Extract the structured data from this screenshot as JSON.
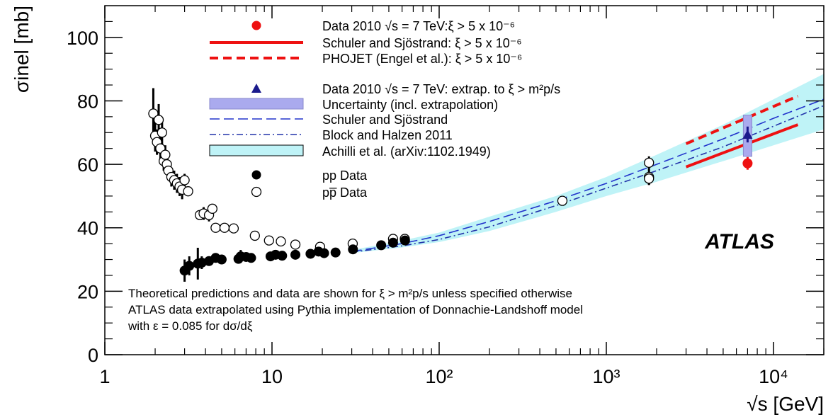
{
  "chart_data": {
    "type": "scatter",
    "x_scale": "log",
    "xlim": [
      1,
      20000
    ],
    "ylim": [
      0,
      110
    ],
    "xlabel": "√s [GeV]",
    "ylabel": "σinel [mb]",
    "x_ticks": [
      {
        "value": 1,
        "label": "1"
      },
      {
        "value": 10,
        "label": "10"
      },
      {
        "value": 100,
        "label": "10²"
      },
      {
        "value": 1000,
        "label": "10³"
      },
      {
        "value": 10000,
        "label": "10⁴"
      }
    ],
    "y_ticks": [
      {
        "value": 0,
        "label": "0"
      },
      {
        "value": 20,
        "label": "20"
      },
      {
        "value": 40,
        "label": "40"
      },
      {
        "value": 60,
        "label": "60"
      },
      {
        "value": 80,
        "label": "80"
      },
      {
        "value": 100,
        "label": "100"
      }
    ],
    "experiment_label": "ATLAS",
    "notes": [
      "Theoretical predictions and data are shown for ξ > m²p/s unless specified otherwise",
      "ATLAS data extrapolated using Pythia implementation of Donnachie-Landshoff model",
      "with ε = 0.085 for dσ/dξ"
    ],
    "legend": [
      {
        "key": "atlas_data",
        "label": "Data 2010 √s = 7 TeV:ξ > 5 x 10⁻⁶",
        "marker": "filled-circle",
        "color": "#ee1111"
      },
      {
        "key": "schuler_red",
        "label": "Schuler and Sjöstrand: ξ > 5 x 10⁻⁶",
        "line": "solid",
        "color": "#ee1111"
      },
      {
        "key": "phojet",
        "label": "PHOJET (Engel et al.): ξ > 5 x 10⁻⁶",
        "line": "dashed",
        "color": "#ee1111"
      },
      {
        "key": "atlas_extrap",
        "label": "Data 2010 √s = 7 TeV: extrap. to ξ > m²p/s",
        "marker": "triangle",
        "color": "#1a1a8c"
      },
      {
        "key": "uncertainty",
        "label": "Uncertainty (incl. extrapolation)",
        "box": "fill",
        "color": "#aaaaee"
      },
      {
        "key": "schuler_blue",
        "label": "Schuler and Sjöstrand",
        "line": "long-dash",
        "color": "#2233cc"
      },
      {
        "key": "block_halzen",
        "label": "Block and Halzen 2011",
        "line": "dash-dot",
        "color": "#2233aa"
      },
      {
        "key": "achilli",
        "label": "Achilli et al. (arXiv:1102.1949)",
        "box": "fill",
        "color": "#bff3f7"
      },
      {
        "key": "pp",
        "label": "pp Data",
        "marker": "filled-circle",
        "color": "#000000"
      },
      {
        "key": "ppbar",
        "label": "pp̅ Data",
        "marker": "open-circle",
        "color": "#000000"
      }
    ],
    "series": {
      "pp_data": [
        [
          3.0,
          26.5,
          3.5
        ],
        [
          3.2,
          28,
          3
        ],
        [
          3.6,
          28.7,
          5
        ],
        [
          3.8,
          29,
          2
        ],
        [
          4.2,
          29.5,
          1
        ],
        [
          4.6,
          30.5,
          1.5
        ],
        [
          5.0,
          30,
          1
        ],
        [
          6.3,
          30.2,
          1
        ],
        [
          6.5,
          31,
          2
        ],
        [
          7.0,
          30.8,
          1
        ],
        [
          7.5,
          30.5,
          1
        ],
        [
          9.8,
          31,
          1
        ],
        [
          10.5,
          31.5,
          1.5
        ],
        [
          11.5,
          31.2,
          1
        ],
        [
          13.8,
          31.5,
          1
        ],
        [
          17.0,
          31.8,
          1
        ],
        [
          19.0,
          32.5,
          1
        ],
        [
          20.5,
          32,
          1
        ],
        [
          24.0,
          32.2,
          1
        ],
        [
          30.5,
          33.2,
          1
        ],
        [
          45.0,
          34.5,
          1
        ],
        [
          53.0,
          35.3,
          1
        ],
        [
          62.5,
          36,
          1
        ]
      ],
      "ppbar_data": [
        [
          1.95,
          76,
          8
        ],
        [
          2.0,
          69,
          5
        ],
        [
          2.05,
          67,
          4
        ],
        [
          2.1,
          74,
          5
        ],
        [
          2.15,
          65,
          4
        ],
        [
          2.2,
          70,
          4
        ],
        [
          2.25,
          61,
          3
        ],
        [
          2.3,
          63,
          3
        ],
        [
          2.35,
          60,
          3
        ],
        [
          2.4,
          58,
          3
        ],
        [
          2.5,
          56,
          3
        ],
        [
          2.6,
          55,
          3
        ],
        [
          2.7,
          54,
          3
        ],
        [
          2.8,
          53,
          3
        ],
        [
          2.9,
          52,
          3
        ],
        [
          3.0,
          55,
          2
        ],
        [
          3.15,
          51.5,
          1
        ],
        [
          3.7,
          44,
          1.5
        ],
        [
          3.9,
          44.5,
          2
        ],
        [
          4.2,
          44,
          2
        ],
        [
          4.4,
          46,
          1.5
        ],
        [
          4.6,
          40,
          1
        ],
        [
          5.2,
          40,
          1
        ],
        [
          5.9,
          39.8,
          1
        ],
        [
          7.9,
          37.5,
          1
        ],
        [
          9.6,
          36,
          1
        ],
        [
          11.3,
          35.7,
          1
        ],
        [
          13.8,
          34.7,
          1
        ],
        [
          19.4,
          34,
          1
        ],
        [
          30.4,
          35,
          1
        ],
        [
          53.0,
          36.5,
          1
        ],
        [
          62.3,
          36.5,
          1
        ],
        [
          546,
          48.5,
          1
        ],
        [
          1800,
          56,
          2.5
        ],
        [
          1800,
          60.5,
          2
        ],
        [
          1800,
          55.5,
          2
        ]
      ],
      "atlas_data": {
        "x": 7000,
        "y": 60.3,
        "err": 2.0
      },
      "atlas_extrap": {
        "x": 7000,
        "y": 69.4,
        "err": 2.5,
        "unc_lo": 62.5,
        "unc_hi": 75.5
      },
      "schuler_red": [
        [
          3000,
          59.2
        ],
        [
          14000,
          72.5
        ]
      ],
      "phojet": [
        [
          3000,
          66.5
        ],
        [
          14000,
          81.5
        ]
      ],
      "schuler_blue": [
        [
          30,
          32.5
        ],
        [
          60,
          35
        ],
        [
          100,
          37.5
        ],
        [
          200,
          42
        ],
        [
          500,
          48.5
        ],
        [
          1000,
          54
        ],
        [
          2000,
          60
        ],
        [
          5000,
          68
        ],
        [
          10000,
          74.5
        ],
        [
          20000,
          80.5
        ]
      ],
      "block_halzen": [
        [
          30,
          32.3
        ],
        [
          60,
          34.3
        ],
        [
          100,
          36.3
        ],
        [
          200,
          40.3
        ],
        [
          500,
          47
        ],
        [
          1000,
          52.5
        ],
        [
          2000,
          58
        ],
        [
          5000,
          65.5
        ],
        [
          10000,
          72
        ],
        [
          20000,
          78.5
        ]
      ],
      "achilli_lower": [
        [
          30,
          32
        ],
        [
          60,
          33.8
        ],
        [
          100,
          35.5
        ],
        [
          200,
          39
        ],
        [
          500,
          45
        ],
        [
          1000,
          50
        ],
        [
          2000,
          54.5
        ],
        [
          5000,
          61
        ],
        [
          10000,
          66
        ],
        [
          20000,
          71
        ]
      ],
      "achilli_upper": [
        [
          30,
          33
        ],
        [
          60,
          36
        ],
        [
          100,
          38.5
        ],
        [
          200,
          43.5
        ],
        [
          500,
          50
        ],
        [
          1000,
          56
        ],
        [
          2000,
          63
        ],
        [
          5000,
          72.5
        ],
        [
          10000,
          80.5
        ],
        [
          20000,
          88.5
        ]
      ]
    }
  }
}
